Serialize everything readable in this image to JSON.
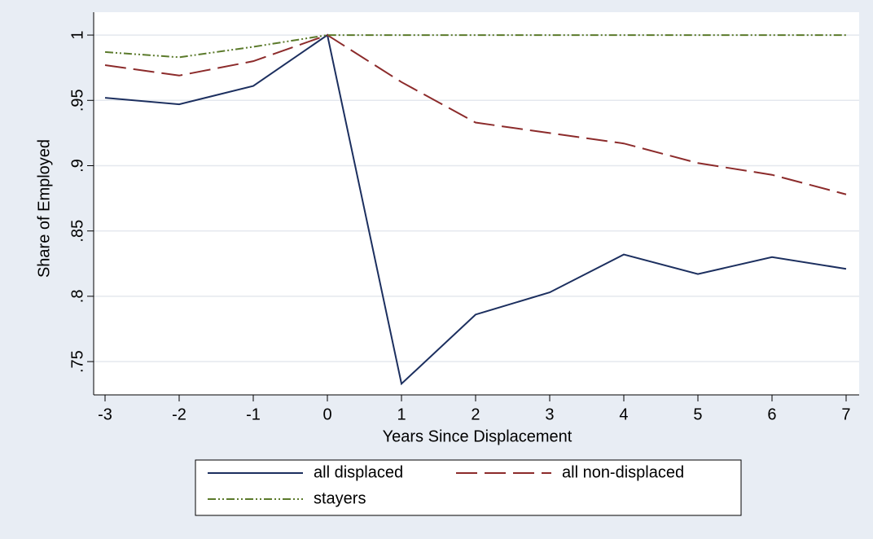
{
  "chart_data": {
    "type": "line",
    "x_label": "Years Since Displacement",
    "y_label": "Share of Employed",
    "x": [
      -3,
      -2,
      -1,
      0,
      1,
      2,
      3,
      4,
      5,
      6,
      7
    ],
    "series": [
      {
        "name": "all displaced",
        "color": "#1c2f5f",
        "values": [
          0.952,
          0.947,
          0.961,
          1,
          0.733,
          0.786,
          0.803,
          0.832,
          0.817,
          0.83,
          0.821
        ]
      },
      {
        "name": "all non-displaced",
        "color": "#8c2b2b",
        "values": [
          0.977,
          0.969,
          0.98,
          1,
          0.964,
          0.933,
          0.925,
          0.917,
          0.902,
          0.893,
          0.878
        ]
      },
      {
        "name": "stayers",
        "color": "#5b7a2b",
        "values": [
          0.987,
          0.983,
          0.991,
          1,
          1,
          1,
          1,
          1,
          1,
          1,
          1
        ]
      }
    ],
    "xlim": [
      -3.154,
      7.176
    ],
    "ylim": [
      0.7245,
      1.0175
    ],
    "xticks": [
      -3,
      -2,
      -1,
      0,
      1,
      2,
      3,
      4,
      5,
      6,
      7
    ],
    "yticks": [
      {
        "value": 0.75,
        "label": ".75"
      },
      {
        "value": 0.8,
        "label": ".8"
      },
      {
        "value": 0.85,
        "label": ".85"
      },
      {
        "value": 0.9,
        "label": ".9"
      },
      {
        "value": 0.95,
        "label": ".95"
      },
      1
    ],
    "grid": true,
    "legend": "bottom"
  }
}
